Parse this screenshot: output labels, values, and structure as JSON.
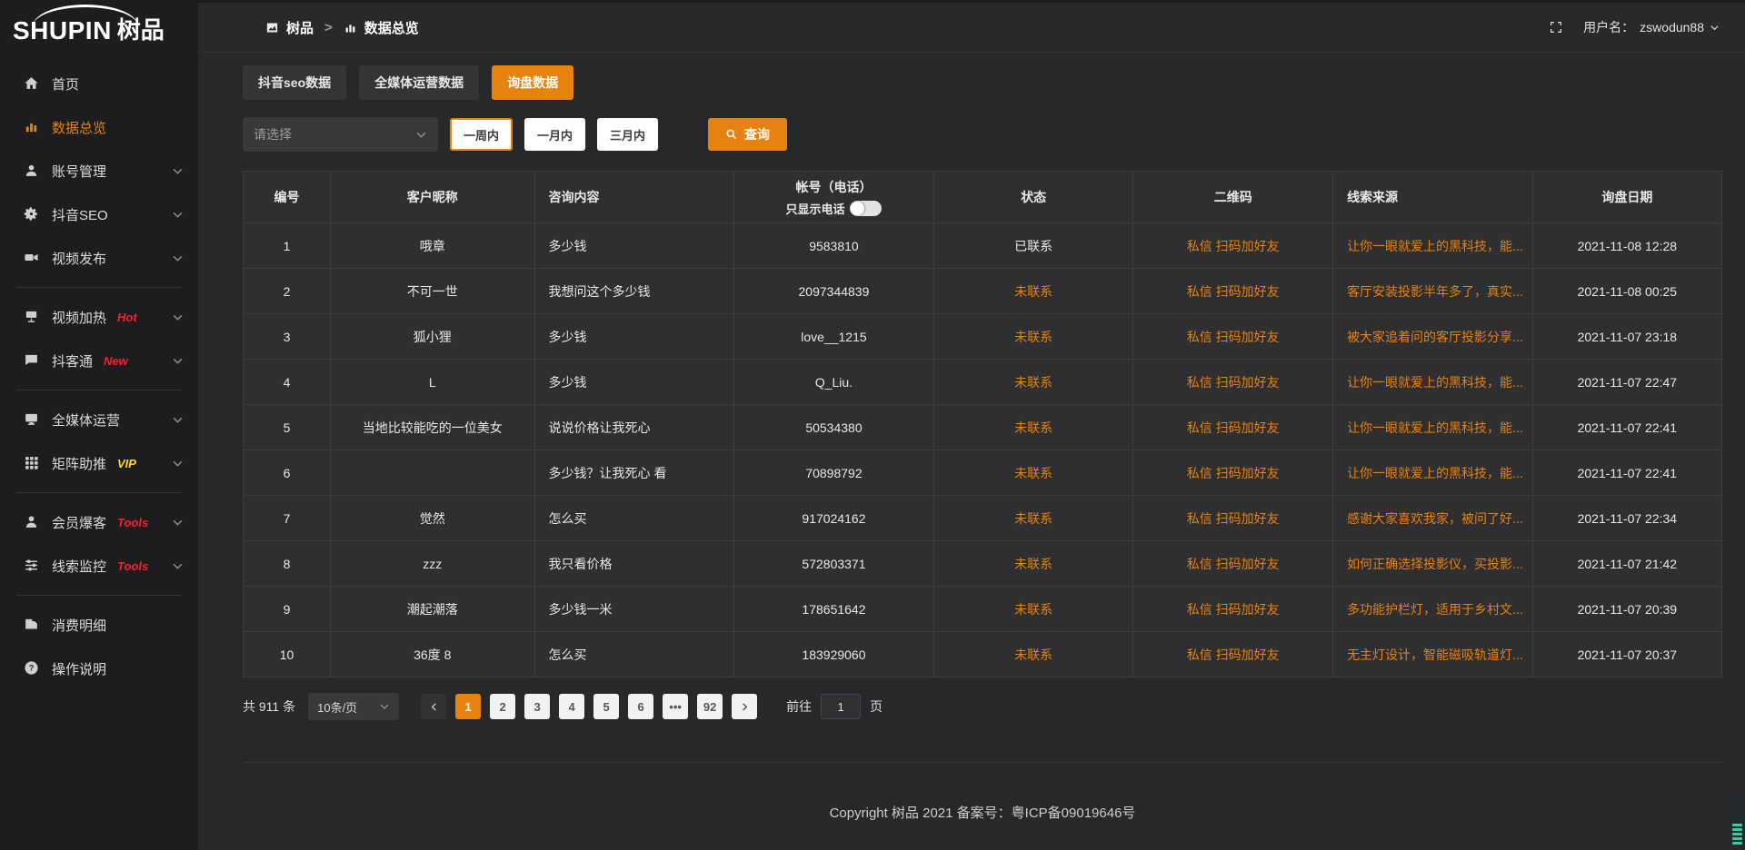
{
  "logo": {
    "text_en": "SHUPIN",
    "text_zh": "树品"
  },
  "header": {
    "breadcrumb": {
      "root": "树品",
      "separator": ">",
      "current": "数据总览"
    },
    "user_label": "用户名：",
    "username": "zswodun88"
  },
  "sidebar": {
    "items": [
      {
        "name": "home",
        "label": "首页",
        "icon": "home-icon",
        "chevron": false,
        "active": false
      },
      {
        "name": "data-overview",
        "label": "数据总览",
        "icon": "chart-icon",
        "chevron": false,
        "active": true
      },
      {
        "name": "account-management",
        "label": "账号管理",
        "icon": "user-icon",
        "chevron": true
      },
      {
        "name": "douyin-seo",
        "label": "抖音SEO",
        "icon": "gear-icon",
        "chevron": true
      },
      {
        "name": "video-publish",
        "label": "视频发布",
        "icon": "video-icon",
        "chevron": true,
        "divider_after": true
      },
      {
        "name": "video-heating",
        "label": "视频加热",
        "icon": "heat-icon",
        "badge": "Hot",
        "badge_color": "#f5222d",
        "chevron": true
      },
      {
        "name": "douketong",
        "label": "抖客通",
        "icon": "chat-icon",
        "badge": "New",
        "badge_color": "#f5222d",
        "chevron": true,
        "divider_after": true
      },
      {
        "name": "media-operation",
        "label": "全媒体运营",
        "icon": "monitor-icon",
        "chevron": true
      },
      {
        "name": "matrix-boost",
        "label": "矩阵助推",
        "icon": "grid-icon",
        "badge": "VIP",
        "badge_color": "#fadb14",
        "chevron": true,
        "divider_after": true
      },
      {
        "name": "member-baoke",
        "label": "会员爆客",
        "icon": "member-icon",
        "badge": "Tools",
        "badge_color": "#f5222d",
        "chevron": true
      },
      {
        "name": "clue-monitor",
        "label": "线索监控",
        "icon": "sliders-icon",
        "badge": "Tools",
        "badge_color": "#f5222d",
        "chevron": true,
        "divider_after": true
      },
      {
        "name": "consumption-detail",
        "label": "消费明细",
        "icon": "wallet-icon",
        "chevron": false
      },
      {
        "name": "instructions",
        "label": "操作说明",
        "icon": "question-icon",
        "chevron": false
      }
    ]
  },
  "tabs": [
    {
      "name": "douyin-seo-data",
      "label": "抖音seo数据",
      "active": false
    },
    {
      "name": "media-operation-data",
      "label": "全媒体运营数据",
      "active": false
    },
    {
      "name": "inquiry-data",
      "label": "询盘数据",
      "active": true
    }
  ],
  "filters": {
    "select_placeholder": "请选择",
    "range_buttons": [
      {
        "name": "one-week",
        "label": "一周内",
        "selected": true
      },
      {
        "name": "one-month",
        "label": "一月内",
        "selected": false
      },
      {
        "name": "three-months",
        "label": "三月内",
        "selected": false
      }
    ],
    "search_label": "查询"
  },
  "table": {
    "columns": [
      "编号",
      "客户昵称",
      "咨询内容",
      "帐号（电话）",
      "状态",
      "二维码",
      "线索来源",
      "询盘日期"
    ],
    "phone_toggle_label": "只显示电话",
    "qr_link_label": "私信 扫码加好友",
    "rows": [
      {
        "id": "1",
        "nickname": "哦章",
        "content": "多少钱",
        "account": "9583810",
        "status": "已联系",
        "contacted": true,
        "source": "让你一眼就爱上的黑科技，能...",
        "date": "2021-11-08 12:28"
      },
      {
        "id": "2",
        "nickname": "不可一世",
        "content": "我想问这个多少钱",
        "account": "2097344839",
        "status": "未联系",
        "contacted": false,
        "source": "客厅安装投影半年多了，真实...",
        "date": "2021-11-08 00:25"
      },
      {
        "id": "3",
        "nickname": "狐小狸",
        "content": "多少钱",
        "account": "love__1215",
        "status": "未联系",
        "contacted": false,
        "source": "被大家追着问的客厅投影分享...",
        "date": "2021-11-07 23:18"
      },
      {
        "id": "4",
        "nickname": "L",
        "content": "多少钱",
        "account": "Q_Liu.",
        "status": "未联系",
        "contacted": false,
        "source": "让你一眼就爱上的黑科技，能...",
        "date": "2021-11-07 22:47"
      },
      {
        "id": "5",
        "nickname": "当地比较能吃的一位美女",
        "content": "说说价格让我死心",
        "account": "50534380",
        "status": "未联系",
        "contacted": false,
        "source": "让你一眼就爱上的黑科技，能...",
        "date": "2021-11-07 22:41"
      },
      {
        "id": "6",
        "nickname": "",
        "content": "多少钱？让我死心 看",
        "account": "70898792",
        "status": "未联系",
        "contacted": false,
        "source": "让你一眼就爱上的黑科技，能...",
        "date": "2021-11-07 22:41"
      },
      {
        "id": "7",
        "nickname": "觉然",
        "content": "怎么买",
        "account": "917024162",
        "status": "未联系",
        "contacted": false,
        "source": "感谢大家喜欢我家，被问了好...",
        "date": "2021-11-07 22:34"
      },
      {
        "id": "8",
        "nickname": "zzz",
        "content": "我只看价格",
        "account": "572803371",
        "status": "未联系",
        "contacted": false,
        "source": "如何正确选择投影仪，买投影...",
        "date": "2021-11-07 21:42"
      },
      {
        "id": "9",
        "nickname": "潮起潮落",
        "content": "多少钱一米",
        "account": "178651642",
        "status": "未联系",
        "contacted": false,
        "source": "多功能护栏灯，适用于乡村文...",
        "date": "2021-11-07 20:39"
      },
      {
        "id": "10",
        "nickname": "36度 8",
        "content": "怎么买",
        "account": "183929060",
        "status": "未联系",
        "contacted": false,
        "source": "无主灯设计，智能磁吸轨道灯...",
        "date": "2021-11-07 20:37"
      }
    ]
  },
  "pagination": {
    "total_label": "共 911 条",
    "per_page": "10条/页",
    "pages": [
      {
        "label": "1",
        "active": true
      },
      {
        "label": "2"
      },
      {
        "label": "3"
      },
      {
        "label": "4"
      },
      {
        "label": "5"
      },
      {
        "label": "6"
      },
      {
        "label": "•••",
        "ellipsis": true
      },
      {
        "label": "92"
      }
    ],
    "goto_label": "前往",
    "goto_value": "1",
    "page_suffix": "页"
  },
  "footer": {
    "copyright": "Copyright 树品 2021 备案号：粤ICP备09019646号"
  },
  "colors": {
    "accent": "#e6820f",
    "hot_badge": "#f5222d",
    "vip_badge": "#fadb14",
    "link": "#e6820f"
  }
}
